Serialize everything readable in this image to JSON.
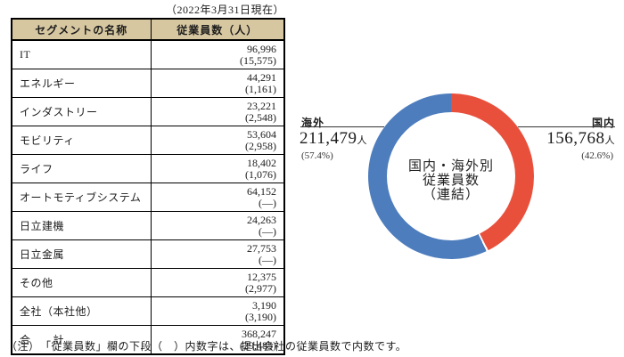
{
  "page": {
    "date_note": "（2022年3月31日現在）",
    "footnote": "（注）　「従業員数」欄の下段（　）内数字は、提出会社の従業員数で内数です。"
  },
  "table": {
    "headers": {
      "segment": "セグメントの名称",
      "employees": "従業員数（人）"
    },
    "rows": [
      {
        "segment": "IT",
        "value": "96,996",
        "sub": "(15,575)"
      },
      {
        "segment": "エネルギー",
        "value": "44,291",
        "sub": "(1,161)"
      },
      {
        "segment": "インダストリー",
        "value": "23,221",
        "sub": "(2,548)"
      },
      {
        "segment": "モビリティ",
        "value": "53,604",
        "sub": "(2,958)"
      },
      {
        "segment": "ライフ",
        "value": "18,402",
        "sub": "(1,076)"
      },
      {
        "segment": "オートモティブシステム",
        "value": "64,152",
        "sub": "(—)"
      },
      {
        "segment": "日立建機",
        "value": "24,263",
        "sub": "(—)"
      },
      {
        "segment": "日立金属",
        "value": "27,753",
        "sub": "(—)"
      },
      {
        "segment": "その他",
        "value": "12,375",
        "sub": "(2,977)"
      },
      {
        "segment": "全社（本社他）",
        "value": "3,190",
        "sub": "(3,190)"
      },
      {
        "segment": "合　　計",
        "value": "368,247",
        "sub": "(29,485)"
      }
    ]
  },
  "chart_data": {
    "type": "pie",
    "subtype": "donut",
    "title": "国内・海外別従業員数（連結）",
    "center_label_lines": [
      "国内・海外別",
      "従業員数",
      "（連結）"
    ],
    "start_angle_deg": 0,
    "direction": "clockwise",
    "legend_position": "callout-labels",
    "segments": [
      {
        "name": "国内",
        "value": 156768,
        "display_value": "156,768",
        "unit": "人",
        "percent": 42.6,
        "percent_label": "(42.6%)",
        "color": "#e8503c",
        "callout_side": "right"
      },
      {
        "name": "海外",
        "value": 211479,
        "display_value": "211,479",
        "unit": "人",
        "percent": 57.4,
        "percent_label": "(57.4%)",
        "color": "#4d7dbd",
        "callout_side": "left"
      }
    ]
  },
  "colors": {
    "domestic": "#e8503c",
    "overseas": "#4d7dbd",
    "table_header_bg": "#d6c7a1",
    "border": "#000000"
  }
}
